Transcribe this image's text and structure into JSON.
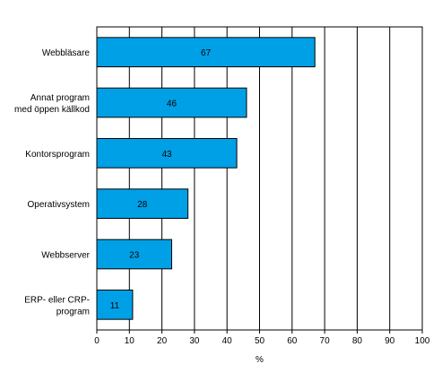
{
  "chart_data": {
    "type": "bar",
    "orientation": "horizontal",
    "categories": [
      [
        "Webbläsare"
      ],
      [
        "Annat program",
        "med öppen källkod"
      ],
      [
        "Kontorsprogram"
      ],
      [
        "Operativsystem"
      ],
      [
        "Webbserver"
      ],
      [
        "ERP- eller CRP-",
        "program"
      ]
    ],
    "values": [
      67,
      46,
      43,
      28,
      23,
      11
    ],
    "data_labels": [
      "67",
      "46",
      "43",
      "28",
      "23",
      "11"
    ],
    "xlabel": "%",
    "xlim": [
      0,
      100
    ],
    "xticks": [
      0,
      10,
      20,
      30,
      40,
      50,
      60,
      70,
      80,
      90,
      100
    ],
    "xtick_labels": [
      "0",
      "10",
      "20",
      "30",
      "40",
      "50",
      "60",
      "70",
      "80",
      "90",
      "100"
    ],
    "grid": "vertical",
    "bar_color": "#00a0e6",
    "bar_edge_color": "#000000",
    "grid_color": "#000000"
  }
}
